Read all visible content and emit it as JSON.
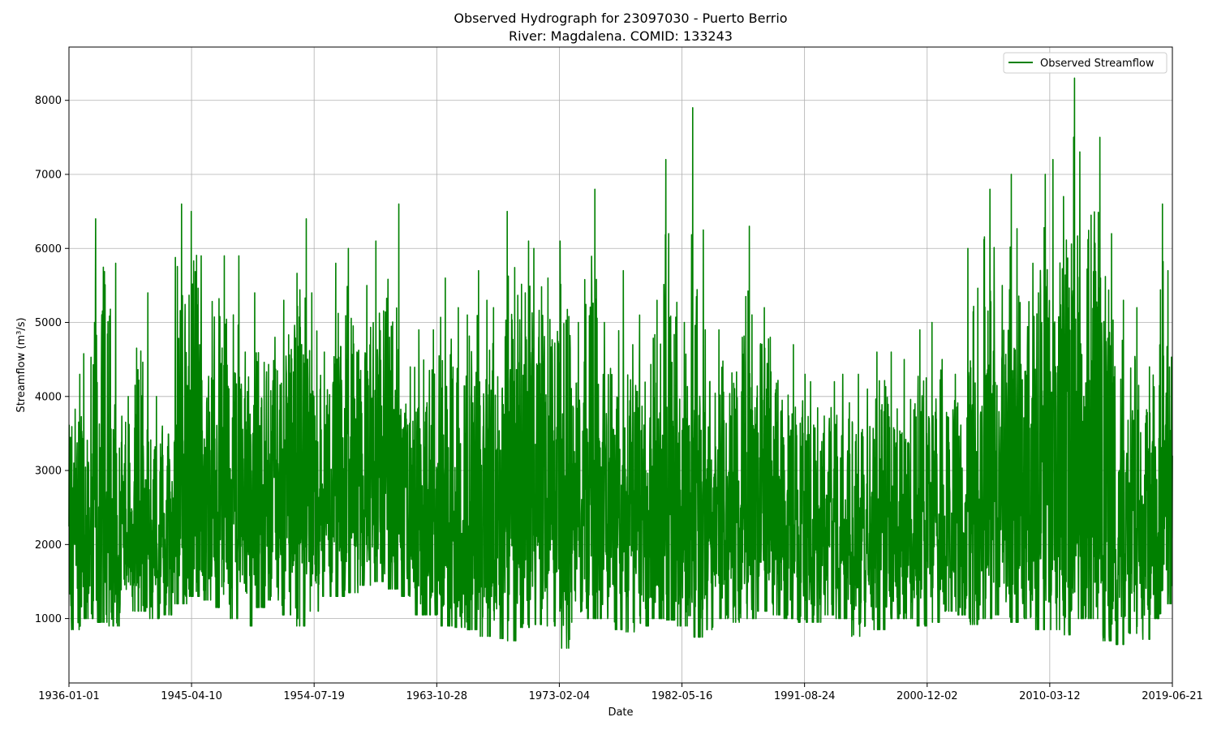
{
  "chart_data": {
    "type": "line",
    "title_line1": "Observed Hydrograph for 23097030 - Puerto Berrio",
    "title_line2": "River: Magdalena. COMID: 133243",
    "xlabel": "Date",
    "ylabel": "Streamflow (m³/s)",
    "ylim": [
      130,
      8720
    ],
    "xlim": [
      "1936-01-01",
      "2019-06-21"
    ],
    "x_ticks": [
      "1936-01-01",
      "1945-04-10",
      "1954-07-19",
      "1963-10-28",
      "1973-02-04",
      "1982-05-16",
      "1991-08-24",
      "2000-12-02",
      "2010-03-12",
      "2019-06-21"
    ],
    "y_ticks": [
      1000,
      2000,
      3000,
      4000,
      5000,
      6000,
      7000,
      8000
    ],
    "grid": true,
    "legend_position": "top-right",
    "line_color": "#008000",
    "series": [
      {
        "name": "Observed Streamflow",
        "x": [
          "1936-01-01",
          "1937-01-01",
          "1938-01-01",
          "1939-01-01",
          "1940-01-01",
          "1941-01-01",
          "1942-01-01",
          "1943-01-01",
          "1944-01-01",
          "1945-01-01",
          "1946-01-01",
          "1947-01-01",
          "1948-01-01",
          "1949-01-01",
          "1950-01-01",
          "1951-01-01",
          "1952-01-01",
          "1953-01-01",
          "1954-01-01",
          "1955-01-01",
          "1956-01-01",
          "1957-01-01",
          "1958-01-01",
          "1959-01-01",
          "1960-01-01",
          "1961-01-01",
          "1962-01-01",
          "1963-01-01",
          "1964-01-01",
          "1965-01-01",
          "1966-01-01",
          "1967-01-01",
          "1968-01-01",
          "1969-01-01",
          "1970-01-01",
          "1971-01-01",
          "1972-01-01",
          "1973-01-01",
          "1974-01-01",
          "1975-01-01",
          "1976-01-01",
          "1977-01-01",
          "1978-01-01",
          "1979-01-01",
          "1980-01-01",
          "1981-01-01",
          "1982-01-01",
          "1983-01-01",
          "1984-01-01",
          "1985-01-01",
          "1986-01-01",
          "1987-01-01",
          "1988-01-01",
          "1989-01-01",
          "1990-01-01",
          "1991-01-01",
          "1992-01-01",
          "1993-01-01",
          "1994-01-01",
          "1995-01-01",
          "1996-01-01",
          "1997-01-01",
          "1998-01-01",
          "1999-01-01",
          "2000-01-01",
          "2001-01-01",
          "2002-01-01",
          "2003-01-01",
          "2004-01-01",
          "2005-01-01",
          "2006-01-01",
          "2007-01-01",
          "2008-01-01",
          "2009-01-01",
          "2010-01-01",
          "2011-01-01",
          "2012-01-01",
          "2013-01-01",
          "2014-01-01",
          "2015-01-01",
          "2016-01-01",
          "2017-01-01",
          "2018-01-01",
          "2019-01-01"
        ],
        "peak": [
          4300,
          5000,
          6400,
          5800,
          4000,
          5400,
          4000,
          3600,
          6600,
          6500,
          5900,
          5900,
          5900,
          4600,
          5400,
          4800,
          5300,
          6400,
          5400,
          4600,
          5800,
          6000,
          5500,
          6100,
          6600,
          4400,
          4900,
          4900,
          5600,
          5200,
          5700,
          5300,
          5200,
          6500,
          6100,
          6000,
          5600,
          6100,
          5000,
          6800,
          5000,
          5700,
          4700,
          5100,
          5300,
          7200,
          5000,
          7900,
          4900,
          4900,
          4800,
          6300,
          5200,
          4800,
          4700,
          4300,
          4200,
          4200,
          4300,
          4300,
          4100,
          4600,
          4600,
          4500,
          4900,
          5000,
          4500,
          4300,
          6000,
          6800,
          5500,
          7000,
          5800,
          7000,
          7200,
          6700,
          8300,
          7500,
          6200,
          5300,
          5200,
          4400,
          6600,
          5700
        ],
        "low": [
          850,
          1000,
          950,
          900,
          1100,
          1100,
          1000,
          1050,
          1200,
          1300,
          1250,
          1150,
          1000,
          900,
          1150,
          1250,
          1050,
          900,
          1100,
          1300,
          1300,
          1350,
          1450,
          1500,
          1400,
          1300,
          1050,
          1050,
          900,
          880,
          850,
          760,
          730,
          700,
          880,
          920,
          900,
          600,
          950,
          1000,
          1000,
          850,
          820,
          900,
          1000,
          980,
          900,
          750,
          850,
          1000,
          950,
          1000,
          1100,
          1050,
          1000,
          950,
          950,
          1050,
          1000,
          760,
          850,
          850,
          1000,
          1000,
          900,
          950,
          1100,
          1050,
          920,
          1000,
          1050,
          950,
          1000,
          850,
          850,
          780,
          1000,
          1000,
          700,
          650,
          800,
          720,
          1000,
          1200
        ],
        "typical": [
          2200,
          2400,
          2600,
          2300,
          2200,
          2100,
          2000,
          2200,
          2600,
          2700,
          2500,
          2600,
          2700,
          2500,
          2400,
          2600,
          2500,
          2800,
          2600,
          2500,
          2700,
          2700,
          2800,
          2800,
          2800,
          2300,
          2200,
          2200,
          2300,
          2200,
          2200,
          2200,
          2300,
          2600,
          2800,
          2900,
          2700,
          2500,
          2700,
          2800,
          2600,
          2400,
          2200,
          2100,
          2300,
          2500,
          2300,
          2500,
          2300,
          2200,
          2400,
          2600,
          2500,
          2300,
          2100,
          2000,
          2000,
          2100,
          2100,
          2100,
          2200,
          2200,
          2100,
          2000,
          2300,
          2400,
          2100,
          2000,
          2500,
          2700,
          2600,
          2800,
          2800,
          2900,
          3000,
          2900,
          3000,
          2800,
          2500,
          2200,
          2300,
          2000,
          2200,
          2400
        ]
      }
    ]
  }
}
